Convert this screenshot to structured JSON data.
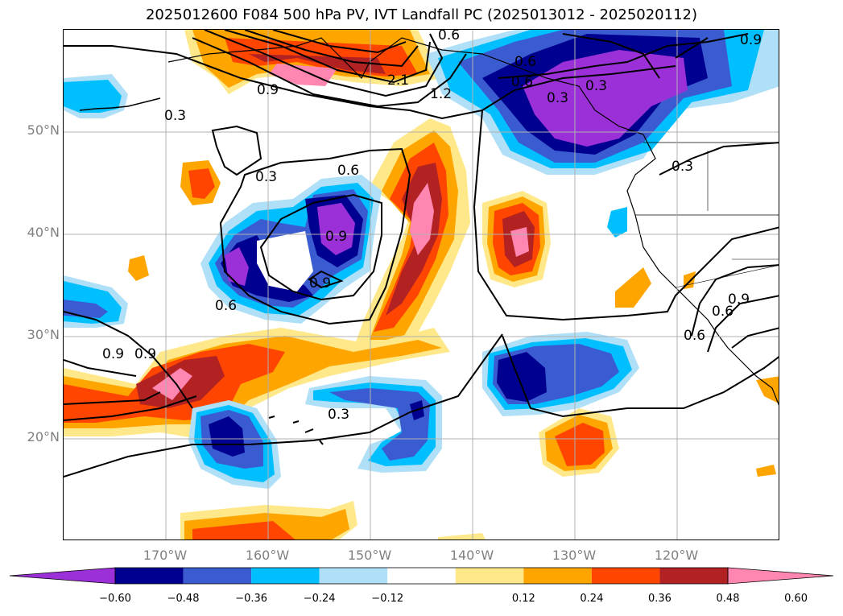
{
  "title": "2025012600 F084 500 hPa PV, IVT Landfall PC (2025013012 - 2025020112)",
  "lat_labels": [
    "50°N",
    "40°N",
    "30°N",
    "20°N"
  ],
  "lon_labels": [
    "170°W",
    "160°W",
    "150°W",
    "140°W",
    "130°W",
    "120°W"
  ],
  "colorbar": {
    "ticks": [
      "−0.60",
      "−0.48",
      "−0.36",
      "−0.24",
      "−0.12",
      "0.12",
      "0.24",
      "0.36",
      "0.48",
      "0.60"
    ],
    "colors": [
      "#9b30d9",
      "#000090",
      "#3a5cd0",
      "#00bfff",
      "#b0e0f8",
      "#ffffff",
      "#ffe88a",
      "#ffa500",
      "#ff4500",
      "#b22222",
      "#ff86b0"
    ],
    "extend": "both"
  },
  "contour_labels": [
    "0.6",
    "0.6",
    "0.9",
    "0.3",
    "2.1",
    "1.2",
    "0.6",
    "0.3",
    "0.9",
    "0.3",
    "0.6",
    "0.3",
    "0.9",
    "0.9",
    "0.6",
    "0.9",
    "0.9",
    "0.6",
    "0.6",
    "0.3",
    "0.3",
    "0.9"
  ],
  "map_extent": {
    "lon": [
      "180°W",
      "110°W"
    ],
    "lat": [
      "10°N",
      "60°N"
    ]
  }
}
